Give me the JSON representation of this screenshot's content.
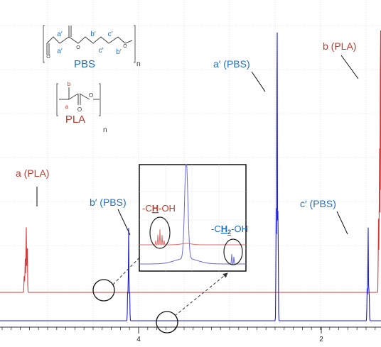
{
  "chart_data": {
    "type": "line",
    "title": "",
    "xlabel": "",
    "ylabel": "",
    "x_axis": {
      "reversed": true,
      "ticks": [
        "4",
        "2"
      ]
    },
    "xlim": [
      5.42,
      1.57
    ],
    "colors": {
      "pla": "#d33a3a",
      "pbs": "#1f1fc8",
      "inset_pla": "#e46a6a",
      "inset_pbs": "#6a6ad8"
    },
    "series": [
      {
        "key": "pla",
        "peaks": [
          {
            "ppm": 5.16,
            "height": 0.21,
            "label": "a (PLA)"
          },
          {
            "ppm": 1.58,
            "height": 0.92,
            "label": "b (PLA)"
          }
        ]
      },
      {
        "key": "pbs",
        "peaks": [
          {
            "ppm": 4.12,
            "height": 0.29,
            "label": "b′ (PBS)"
          },
          {
            "ppm": 2.62,
            "height": 1.0,
            "label": "a′ (PBS)"
          },
          {
            "ppm": 1.7,
            "height": 0.3,
            "label": "c′ (PBS)"
          }
        ]
      }
    ],
    "structures": {
      "pbs": {
        "name": "PBS",
        "subscript": "n",
        "atom_labels": [
          "a′",
          "a′",
          "b′",
          "b′",
          "c′",
          "c′"
        ]
      },
      "pla": {
        "name": "PLA",
        "subscript": "n",
        "atom_labels": [
          "b",
          "a"
        ]
      }
    },
    "inset": {
      "annotations": [
        "-CH-OH",
        "-CH2-OH"
      ]
    }
  }
}
